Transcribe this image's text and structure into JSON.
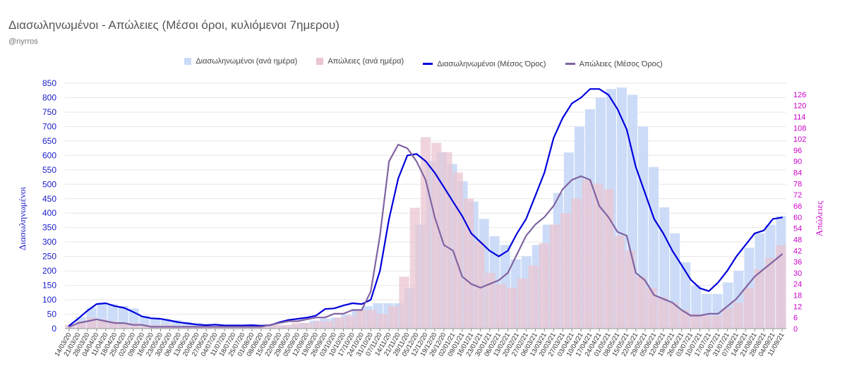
{
  "title": "Διασωληνωμένοι - Απώλειες (Μέσοι όροι, κυλιόμενοι 7ημερου)",
  "subtitle": "@nyrros",
  "colors": {
    "icu_bar": "#c9daf8",
    "deaths_bar": "#e9c6d2",
    "icu_line": "#0000dd",
    "deaths_line": "#8064a2",
    "left_axis": "#1a1acc",
    "right_axis": "#cc00cc",
    "grid": "#e6e6e6"
  },
  "chart_data": {
    "type": "bar",
    "title": "Διασωληνωμένοι - Απώλειες (Μέσοι όροι, κυλιόμενοι 7ημερου)",
    "ylabel": "Διασωληνωμένοι",
    "y2label": "Απώλειες",
    "ylim": [
      0,
      850
    ],
    "y2lim": [
      0,
      132
    ],
    "yticks": [
      0,
      50,
      100,
      150,
      200,
      250,
      300,
      350,
      400,
      450,
      500,
      550,
      600,
      650,
      700,
      750,
      800,
      850
    ],
    "y2ticks": [
      0,
      6,
      12,
      18,
      24,
      30,
      36,
      42,
      48,
      54,
      60,
      66,
      72,
      78,
      84,
      90,
      96,
      102,
      108,
      114,
      120,
      126
    ],
    "xticks": [
      "14/03/20",
      "21/03/20",
      "28/03/20",
      "04/04/20",
      "11/04/20",
      "18/04/20",
      "25/04/20",
      "02/05/20",
      "09/05/20",
      "16/05/20",
      "23/05/20",
      "30/05/20",
      "06/06/20",
      "13/06/20",
      "20/06/20",
      "27/06/20",
      "04/07/20",
      "11/07/20",
      "18/07/20",
      "25/07/20",
      "01/08/20",
      "08/08/20",
      "15/08/20",
      "22/08/20",
      "29/08/20",
      "05/09/20",
      "12/09/20",
      "19/09/20",
      "26/09/20",
      "03/10/20",
      "10/10/20",
      "17/10/20",
      "24/10/20",
      "31/10/20",
      "07/11/20",
      "14/11/20",
      "21/11/20",
      "28/11/20",
      "05/12/20",
      "12/12/20",
      "19/12/20",
      "26/12/20",
      "02/01/21",
      "09/01/21",
      "16/01/21",
      "23/01/21",
      "30/01/21",
      "06/02/21",
      "13/02/21",
      "20/02/21",
      "27/02/21",
      "06/03/21",
      "13/03/21",
      "20/03/21",
      "27/03/21",
      "03/04/21",
      "10/04/21",
      "17/04/21",
      "24/04/21",
      "01/05/21",
      "08/05/21",
      "15/05/21",
      "22/05/21",
      "29/05/21",
      "05/06/21",
      "12/06/21",
      "19/06/21",
      "26/06/21",
      "03/07/21",
      "10/07/21",
      "17/07/21",
      "24/07/21",
      "31/07/21",
      "07/08/21",
      "14/08/21",
      "21/08/21",
      "28/08/21",
      "04/09/21",
      "11/09/21"
    ],
    "grid": true,
    "legend_placement": "top-center",
    "series": [
      {
        "name": "Διασωληνωμένοι (ανά ημέρα)",
        "kind": "bar",
        "axis": "left",
        "values": [
          12,
          40,
          72,
          90,
          85,
          78,
          70,
          45,
          38,
          34,
          30,
          24,
          20,
          16,
          12,
          13,
          11,
          11,
          12,
          14,
          11,
          13,
          20,
          28,
          35,
          38,
          48,
          68,
          78,
          88,
          88,
          88,
          140,
          360,
          580,
          610,
          570,
          510,
          440,
          380,
          320,
          290,
          240,
          250,
          290,
          360,
          470,
          610,
          700,
          760,
          800,
          830,
          835,
          810,
          700,
          560,
          420,
          330,
          230,
          150,
          120,
          120,
          160,
          200,
          280,
          330,
          360,
          390
        ]
      },
      {
        "name": "Απώλειες (ανά ημέρα)",
        "kind": "bar",
        "axis": "right",
        "values": [
          2,
          4,
          6,
          5,
          4,
          3,
          3,
          2,
          2,
          2,
          1,
          1,
          1,
          1,
          1,
          1,
          1,
          1,
          1,
          2,
          2,
          3,
          3,
          4,
          4,
          6,
          7,
          10,
          10,
          8,
          12,
          28,
          65,
          103,
          100,
          95,
          84,
          70,
          47,
          30,
          24,
          22,
          27,
          34,
          46,
          56,
          62,
          70,
          80,
          78,
          75,
          50,
          42,
          28,
          22,
          17,
          14,
          10,
          8,
          7,
          7,
          11,
          14,
          22,
          32,
          38,
          45
        ]
      },
      {
        "name": "Διασωληνωμένοι (Μέσος Όρος)",
        "kind": "line",
        "axis": "left",
        "x": [
          "14/03/20",
          "21/03/20",
          "28/03/20",
          "04/04/20",
          "11/04/20",
          "18/04/20",
          "25/04/20",
          "02/05/20",
          "09/05/20",
          "16/05/20",
          "23/05/20",
          "30/05/20",
          "06/06/20",
          "13/06/20",
          "20/06/20",
          "27/06/20",
          "04/07/20",
          "11/07/20",
          "18/07/20",
          "25/07/20",
          "01/08/20",
          "08/08/20",
          "15/08/20",
          "22/08/20",
          "29/08/20",
          "05/09/20",
          "12/09/20",
          "19/09/20",
          "26/09/20",
          "03/10/20",
          "10/10/20",
          "17/10/20",
          "24/10/20",
          "31/10/20",
          "07/11/20",
          "14/11/20",
          "21/11/20",
          "28/11/20",
          "05/12/20",
          "12/12/20",
          "19/12/20",
          "26/12/20",
          "02/01/21",
          "09/01/21",
          "16/01/21",
          "23/01/21",
          "30/01/21",
          "06/02/21",
          "13/02/21",
          "20/02/21",
          "27/02/21",
          "06/03/21",
          "13/03/21",
          "20/03/21",
          "27/03/21",
          "03/04/21",
          "10/04/21",
          "17/04/21",
          "24/04/21",
          "01/05/21",
          "08/05/21",
          "15/05/21",
          "22/05/21",
          "29/05/21",
          "05/06/21",
          "12/06/21",
          "19/06/21",
          "26/06/21",
          "03/07/21",
          "10/07/21",
          "17/07/21",
          "24/07/21",
          "31/07/21",
          "07/08/21",
          "14/08/21",
          "21/08/21",
          "28/08/21",
          "04/09/21",
          "11/09/21"
        ],
        "values": [
          10,
          35,
          62,
          85,
          88,
          78,
          72,
          58,
          42,
          36,
          34,
          28,
          22,
          18,
          14,
          12,
          14,
          11,
          11,
          11,
          12,
          10,
          12,
          22,
          30,
          34,
          38,
          45,
          68,
          70,
          80,
          88,
          85,
          100,
          200,
          380,
          520,
          600,
          605,
          580,
          540,
          490,
          440,
          390,
          330,
          300,
          270,
          250,
          270,
          330,
          380,
          460,
          540,
          660,
          730,
          780,
          800,
          830,
          830,
          810,
          760,
          690,
          560,
          470,
          380,
          330,
          270,
          220,
          170,
          140,
          130,
          160,
          200,
          250,
          290,
          330,
          340,
          380,
          385
        ]
      },
      {
        "name": "Απώλειες (Μέσος Όρος)",
        "kind": "line",
        "axis": "right",
        "x": [
          "14/03/20",
          "21/03/20",
          "28/03/20",
          "04/04/20",
          "11/04/20",
          "18/04/20",
          "25/04/20",
          "02/05/20",
          "09/05/20",
          "16/05/20",
          "23/05/20",
          "30/05/20",
          "06/06/20",
          "13/06/20",
          "20/06/20",
          "27/06/20",
          "04/07/20",
          "11/07/20",
          "18/07/20",
          "25/07/20",
          "01/08/20",
          "08/08/20",
          "15/08/20",
          "22/08/20",
          "29/08/20",
          "05/09/20",
          "12/09/20",
          "19/09/20",
          "26/09/20",
          "03/10/20",
          "10/10/20",
          "17/10/20",
          "24/10/20",
          "31/10/20",
          "07/11/20",
          "14/11/20",
          "21/11/20",
          "28/11/20",
          "05/12/20",
          "12/12/20",
          "19/12/20",
          "26/12/20",
          "02/01/21",
          "09/01/21",
          "16/01/21",
          "23/01/21",
          "30/01/21",
          "06/02/21",
          "13/02/21",
          "20/02/21",
          "27/02/21",
          "06/03/21",
          "13/03/21",
          "20/03/21",
          "27/03/21",
          "03/04/21",
          "10/04/21",
          "17/04/21",
          "24/04/21",
          "01/05/21",
          "08/05/21",
          "15/05/21",
          "22/05/21",
          "29/05/21",
          "05/06/21",
          "12/06/21",
          "19/06/21",
          "26/06/21",
          "03/07/21",
          "10/07/21",
          "17/07/21",
          "24/07/21",
          "31/07/21",
          "07/08/21",
          "14/08/21",
          "21/08/21",
          "28/08/21",
          "04/09/21",
          "11/09/21"
        ],
        "values": [
          1,
          3,
          4,
          5,
          4,
          3,
          3,
          2,
          2,
          1,
          1,
          1,
          1,
          1,
          1,
          1,
          1,
          1,
          1,
          1,
          1,
          1,
          2,
          3,
          4,
          4,
          5,
          6,
          6,
          8,
          8,
          10,
          10,
          20,
          50,
          90,
          99,
          97,
          90,
          80,
          60,
          45,
          42,
          28,
          24,
          22,
          24,
          26,
          30,
          40,
          50,
          56,
          60,
          66,
          75,
          80,
          82,
          80,
          66,
          60,
          52,
          50,
          30,
          26,
          18,
          16,
          14,
          10,
          7,
          7,
          8,
          8,
          12,
          16,
          22,
          28,
          32,
          36,
          40
        ]
      }
    ]
  }
}
